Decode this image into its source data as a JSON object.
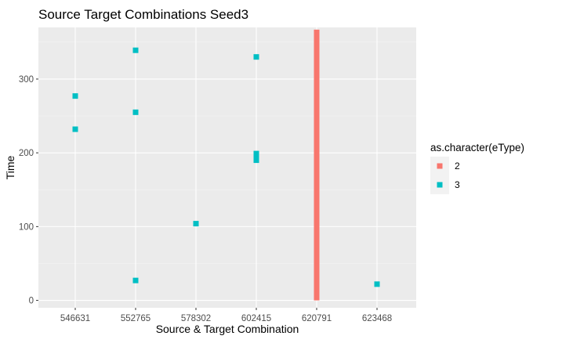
{
  "chart_data": {
    "type": "scatter",
    "title": "Source Target Combinations Seed3",
    "xlabel": "Source & Target Combination",
    "ylabel": "Time",
    "categories": [
      "546631",
      "552765",
      "578302",
      "602415",
      "620791",
      "623468"
    ],
    "ylim": [
      -10,
      370
    ],
    "yticks": [
      0,
      100,
      200,
      300
    ],
    "grid": true,
    "legend": {
      "title": "as.character(eType)",
      "position": "right",
      "entries": [
        {
          "label": "2",
          "color": "#f8766d"
        },
        {
          "label": "3",
          "color": "#00bfc4"
        }
      ]
    },
    "series": [
      {
        "name": "2",
        "color": "#f8766d",
        "points": [
          {
            "x": "620791",
            "y0": 0,
            "y1": 367
          }
        ]
      },
      {
        "name": "3",
        "color": "#00bfc4",
        "points": [
          {
            "x": "546631",
            "y": 232
          },
          {
            "x": "546631",
            "y": 277
          },
          {
            "x": "552765",
            "y": 27
          },
          {
            "x": "552765",
            "y": 255
          },
          {
            "x": "552765",
            "y": 339
          },
          {
            "x": "578302",
            "y": 104
          },
          {
            "x": "602415",
            "y": 190
          },
          {
            "x": "602415",
            "y": 195
          },
          {
            "x": "602415",
            "y": 199
          },
          {
            "x": "602415",
            "y": 330
          },
          {
            "x": "623468",
            "y": 22
          }
        ]
      }
    ]
  }
}
